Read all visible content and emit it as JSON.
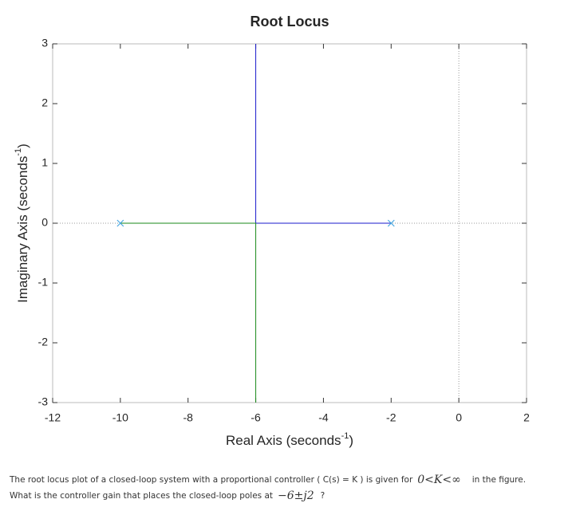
{
  "chart_data": {
    "type": "line",
    "title": "Root Locus",
    "xlabel": {
      "text": "Real Axis (seconds",
      "sup": "-1",
      "end": ")"
    },
    "ylabel": {
      "text": "Imaginary Axis (seconds",
      "sup": "-1",
      "end": ")"
    },
    "xlim": [
      -12,
      2
    ],
    "xticks": [
      -12,
      -10,
      -8,
      -6,
      -4,
      -2,
      0,
      2
    ],
    "ylim": [
      -3,
      3
    ],
    "yticks": [
      -3,
      -2,
      -1,
      0,
      1,
      2,
      3
    ],
    "zero_lines": true,
    "series": [
      {
        "color": "#1a1acc",
        "x": [
          -2,
          -6,
          -6
        ],
        "values": [
          0,
          0,
          3
        ]
      },
      {
        "color": "#1a8a1a",
        "x": [
          -10,
          -6,
          -6
        ],
        "values": [
          0,
          0,
          -3
        ]
      },
      {
        "color": "#4aa8e0",
        "marker": "x",
        "x": [
          -10,
          -2
        ],
        "values": [
          0,
          0
        ]
      }
    ]
  },
  "question": {
    "text1": "The root locus plot of a closed-loop system with a proportional controller ( C(s) = K ) is given for",
    "math1": "0<K<∞",
    "text2": "in the figure.",
    "text3": "What is the controller gain that places the closed-loop poles at",
    "math2": "−6±j2",
    "text4": "?"
  }
}
